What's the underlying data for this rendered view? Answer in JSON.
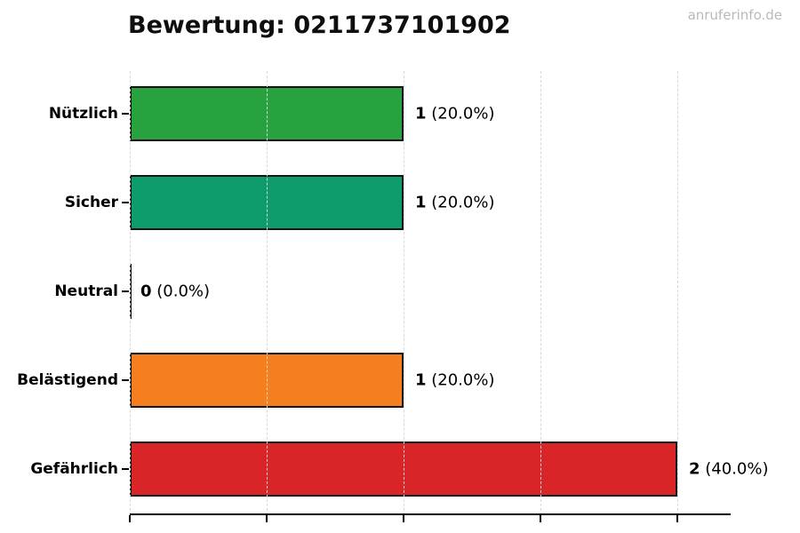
{
  "page": {
    "watermark": "anruferinfo.de"
  },
  "chart_data": {
    "type": "bar",
    "orientation": "horizontal",
    "title": "Bewertung: 0211737101902",
    "categories": [
      "Nützlich",
      "Sicher",
      "Neutral",
      "Belästigend",
      "Gefährlich"
    ],
    "values": [
      1,
      1,
      0,
      1,
      2
    ],
    "value_labels": [
      "1",
      "1",
      "0",
      "1",
      "2"
    ],
    "percent_labels": [
      "(20.0%)",
      "(20.0%)",
      "(0.0%)",
      "(20.0%)",
      "(40.0%)"
    ],
    "bar_colors": [
      "#27a23f",
      "#0e9c6c",
      "#ffffff",
      "#f57f1e",
      "#d92527"
    ],
    "bar_edge_color": "#131313",
    "grid_values": [
      0,
      0.5,
      1.0,
      1.5,
      2.0
    ],
    "xlim": [
      0,
      2.2
    ],
    "grid_style": "dashed",
    "grid_color": "#d8d8d8",
    "legend": false,
    "xlabel": "",
    "ylabel": ""
  }
}
